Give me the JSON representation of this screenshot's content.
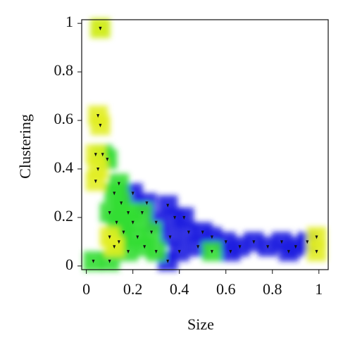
{
  "chart_data": {
    "type": "scatter",
    "xlabel": "Size",
    "ylabel": "Clustering",
    "xlim": [
      -0.02,
      1.04
    ],
    "ylim": [
      -0.015,
      1.015
    ],
    "xticks": [
      0,
      0.2,
      0.4,
      0.6,
      0.8,
      1
    ],
    "yticks": [
      0,
      0.2,
      0.4,
      0.6,
      0.8,
      1
    ],
    "series": [
      {
        "color": "#1c1ce0",
        "x": [
          0.2,
          0.26,
          0.35,
          0.3,
          0.38,
          0.42,
          0.36,
          0.44,
          0.5,
          0.54,
          0.4,
          0.48,
          0.6,
          0.66,
          0.72,
          0.78,
          0.84,
          0.9,
          0.95,
          0.35,
          0.62,
          0.87
        ],
        "y": [
          0.3,
          0.26,
          0.25,
          0.18,
          0.2,
          0.2,
          0.12,
          0.14,
          0.14,
          0.12,
          0.06,
          0.08,
          0.1,
          0.08,
          0.1,
          0.08,
          0.1,
          0.08,
          0.1,
          0.02,
          0.06,
          0.06
        ]
      },
      {
        "color": "#33dd33",
        "x": [
          0.07,
          0.09,
          0.06,
          0.14,
          0.12,
          0.15,
          0.18,
          0.1,
          0.13,
          0.16,
          0.2,
          0.22,
          0.25,
          0.18,
          0.1,
          0.03,
          0.28,
          0.3,
          0.24,
          0.14,
          0.54
        ],
        "y": [
          0.46,
          0.44,
          0.98,
          0.34,
          0.3,
          0.26,
          0.22,
          0.22,
          0.18,
          0.14,
          0.18,
          0.12,
          0.08,
          0.06,
          0.02,
          0.02,
          0.14,
          0.06,
          0.22,
          0.1,
          0.06
        ]
      },
      {
        "color": "#e2ee22",
        "x": [
          0.06,
          0.05,
          0.06,
          0.04,
          0.05,
          0.04,
          0.99,
          0.99,
          0.1,
          0.12
        ],
        "y": [
          0.98,
          0.62,
          0.58,
          0.46,
          0.4,
          0.35,
          0.12,
          0.06,
          0.12,
          0.08
        ]
      }
    ]
  }
}
